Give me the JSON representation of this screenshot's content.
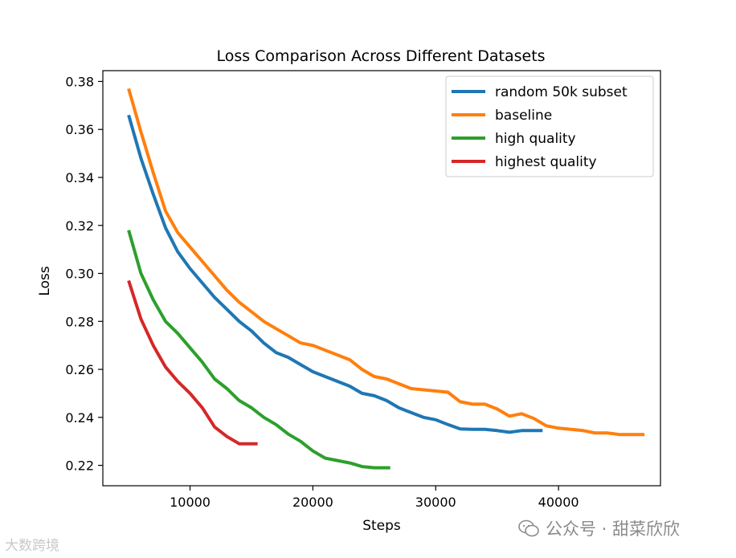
{
  "chart_data": {
    "type": "line",
    "title": "Loss Comparison Across Different Datasets",
    "xlabel": "Steps",
    "ylabel": "Loss",
    "xlim": [
      2900,
      48300
    ],
    "ylim": [
      0.2115,
      0.3845
    ],
    "xticks": [
      10000,
      20000,
      30000,
      40000
    ],
    "yticks": [
      0.22,
      0.24,
      0.26,
      0.28,
      0.3,
      0.32,
      0.34,
      0.36,
      0.38
    ],
    "legend_position": "top-right",
    "series": [
      {
        "name": "random 50k subset",
        "color": "#1f77b4",
        "x": [
          5000,
          6000,
          7000,
          8000,
          9000,
          10000,
          11000,
          12000,
          13000,
          14000,
          15000,
          16000,
          17000,
          18000,
          19000,
          20000,
          21000,
          22000,
          23000,
          24000,
          25000,
          26000,
          27000,
          28000,
          29000,
          30000,
          31000,
          32000,
          33000,
          34000,
          35000,
          36000,
          37000,
          38000,
          38700
        ],
        "y": [
          0.366,
          0.348,
          0.333,
          0.319,
          0.309,
          0.302,
          0.296,
          0.29,
          0.285,
          0.28,
          0.276,
          0.271,
          0.267,
          0.265,
          0.262,
          0.259,
          0.257,
          0.255,
          0.253,
          0.25,
          0.249,
          0.247,
          0.244,
          0.242,
          0.24,
          0.239,
          0.237,
          0.2352,
          0.235,
          0.235,
          0.2345,
          0.2338,
          0.2345,
          0.2345,
          0.2345
        ]
      },
      {
        "name": "baseline",
        "color": "#ff7f0e",
        "x": [
          5000,
          6000,
          7000,
          8000,
          9000,
          10000,
          11000,
          12000,
          13000,
          14000,
          15000,
          16000,
          17000,
          18000,
          19000,
          20000,
          21000,
          22000,
          23000,
          24000,
          25000,
          26000,
          27000,
          28000,
          29000,
          30000,
          31000,
          32000,
          33000,
          34000,
          35000,
          36000,
          37000,
          38000,
          39000,
          40000,
          41000,
          42000,
          43000,
          44000,
          45000,
          46000,
          47000
        ],
        "y": [
          0.377,
          0.359,
          0.342,
          0.326,
          0.317,
          0.311,
          0.305,
          0.299,
          0.293,
          0.288,
          0.284,
          0.28,
          0.277,
          0.274,
          0.271,
          0.27,
          0.268,
          0.266,
          0.264,
          0.26,
          0.257,
          0.256,
          0.254,
          0.252,
          0.2515,
          0.251,
          0.2505,
          0.2465,
          0.2455,
          0.2455,
          0.2435,
          0.2405,
          0.2415,
          0.2395,
          0.2365,
          0.2355,
          0.235,
          0.2345,
          0.2335,
          0.2335,
          0.2328,
          0.2328,
          0.2328
        ]
      },
      {
        "name": "high quality",
        "color": "#2ca02c",
        "x": [
          5000,
          6000,
          7000,
          8000,
          9000,
          10000,
          11000,
          12000,
          13000,
          14000,
          15000,
          16000,
          17000,
          18000,
          19000,
          20000,
          21000,
          22000,
          23000,
          24000,
          25000,
          26000,
          26300
        ],
        "y": [
          0.318,
          0.3,
          0.289,
          0.28,
          0.275,
          0.269,
          0.263,
          0.256,
          0.252,
          0.247,
          0.244,
          0.24,
          0.237,
          0.233,
          0.23,
          0.226,
          0.223,
          0.222,
          0.221,
          0.2195,
          0.219,
          0.219,
          0.219
        ]
      },
      {
        "name": "highest quality",
        "color": "#d62728",
        "x": [
          5000,
          6000,
          7000,
          8000,
          9000,
          10000,
          11000,
          12000,
          13000,
          14000,
          15500
        ],
        "y": [
          0.297,
          0.281,
          0.27,
          0.261,
          0.255,
          0.25,
          0.244,
          0.236,
          0.232,
          0.229,
          0.229
        ]
      }
    ]
  },
  "watermarks": {
    "left": "大数跨境",
    "right": "公众号 · 甜菜欣欣",
    "right_icon": "wechat-icon"
  }
}
